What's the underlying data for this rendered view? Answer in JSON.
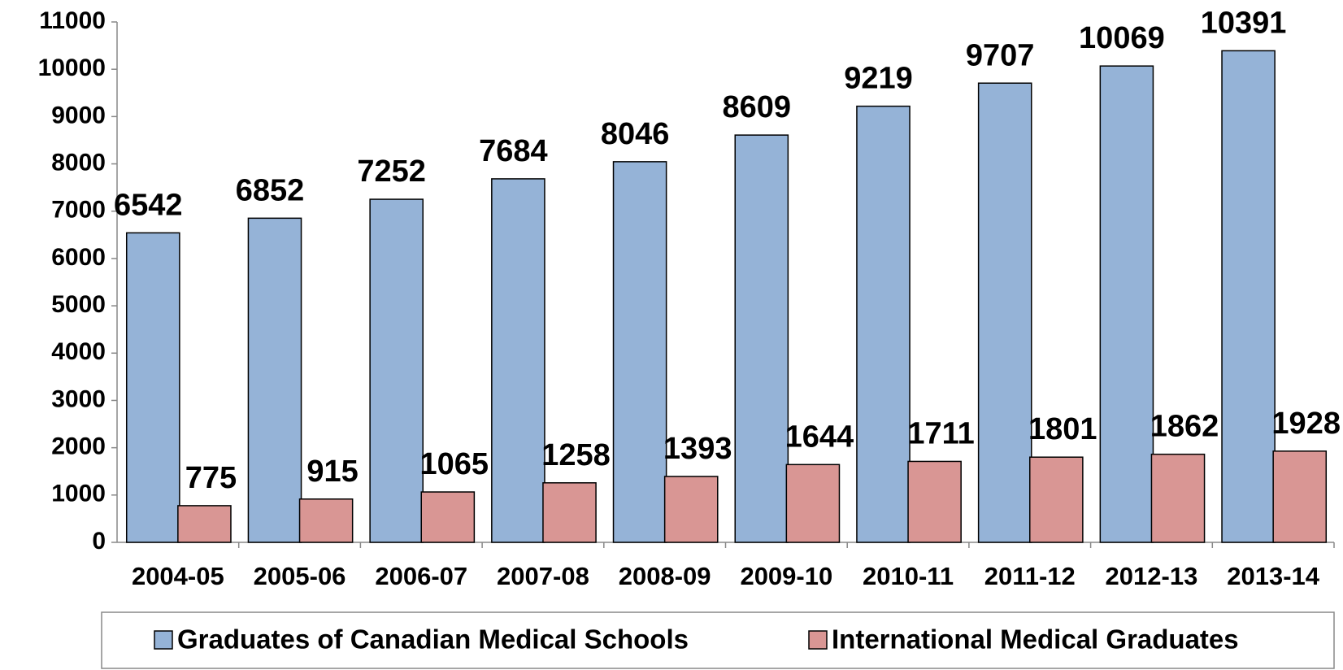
{
  "chart_data": {
    "type": "bar",
    "categories": [
      "2004-05",
      "2005-06",
      "2006-07",
      "2007-08",
      "2008-09",
      "2009-10",
      "2010-11",
      "2011-12",
      "2012-13",
      "2013-14"
    ],
    "series": [
      {
        "name": "Graduates of Canadian Medical Schools",
        "color": "#95b3d7",
        "values": [
          6542,
          6852,
          7252,
          7684,
          8046,
          8609,
          9219,
          9707,
          10069,
          10391
        ]
      },
      {
        "name": "International Medical Graduates",
        "color": "#d99694",
        "values": [
          775,
          915,
          1065,
          1258,
          1393,
          1644,
          1711,
          1801,
          1862,
          1928
        ]
      }
    ],
    "ylim": [
      0,
      11000
    ],
    "yticks": [
      0,
      1000,
      2000,
      3000,
      4000,
      5000,
      6000,
      7000,
      8000,
      9000,
      10000,
      11000
    ],
    "legend": "bottom"
  }
}
